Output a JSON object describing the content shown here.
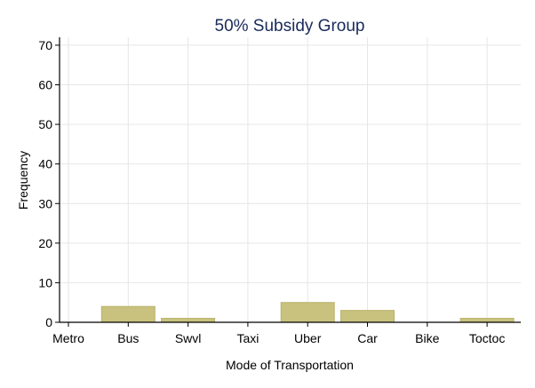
{
  "chart_data": {
    "type": "bar",
    "title": "50% Subsidy Group",
    "xlabel": "Mode of Transportation",
    "ylabel": "Frequency",
    "categories": [
      "Metro",
      "Bus",
      "Swvl",
      "Taxi",
      "Uber",
      "Car",
      "Bike",
      "Toctoc"
    ],
    "values": [
      0,
      4,
      1,
      0,
      5,
      3,
      0,
      1
    ],
    "ylim": [
      0,
      72
    ],
    "yticks": [
      0,
      10,
      20,
      30,
      40,
      50,
      60,
      70
    ],
    "grid": true,
    "colors": {
      "bar_fill": "#c8c27e",
      "bar_edge": "#b9b26c",
      "title": "#1a2a5a"
    }
  }
}
